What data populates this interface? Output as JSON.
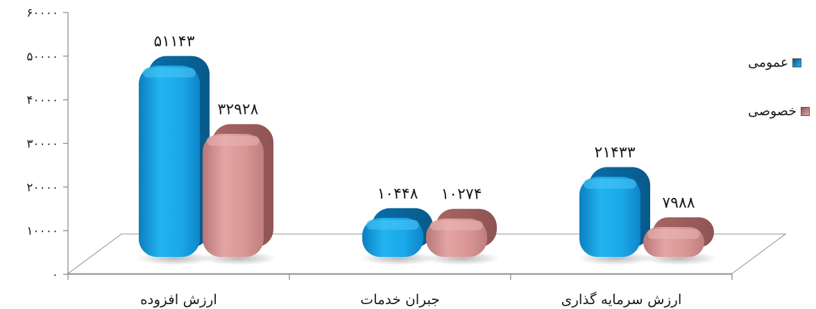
{
  "chart_data": {
    "type": "bar",
    "categories": [
      "ارزش افزوده",
      "جبران خدمات",
      "ارزش سرمایه گذاری"
    ],
    "series": [
      {
        "name": "عمومی",
        "values": [
          51143,
          10448,
          21433
        ],
        "labels": [
          "۵۱۱۴۳",
          "۱۰۴۴۸",
          "۲۱۴۳۳"
        ],
        "color": "#1aa7e8"
      },
      {
        "name": "خصوصی",
        "values": [
          32928,
          10274,
          7988
        ],
        "labels": [
          "۳۲۹۲۸",
          "۱۰۲۷۴",
          "۷۹۸۸"
        ],
        "color": "#d99594"
      }
    ],
    "ylim": [
      0,
      60000
    ],
    "yticks": [
      0,
      10000,
      20000,
      30000,
      40000,
      50000,
      60000
    ],
    "ytick_labels": [
      "۰",
      "۱۰۰۰۰",
      "۲۰۰۰۰",
      "۳۰۰۰۰",
      "۴۰۰۰۰",
      "۵۰۰۰۰",
      "۶۰۰۰۰"
    ],
    "legend_position": "right",
    "grid": false
  }
}
